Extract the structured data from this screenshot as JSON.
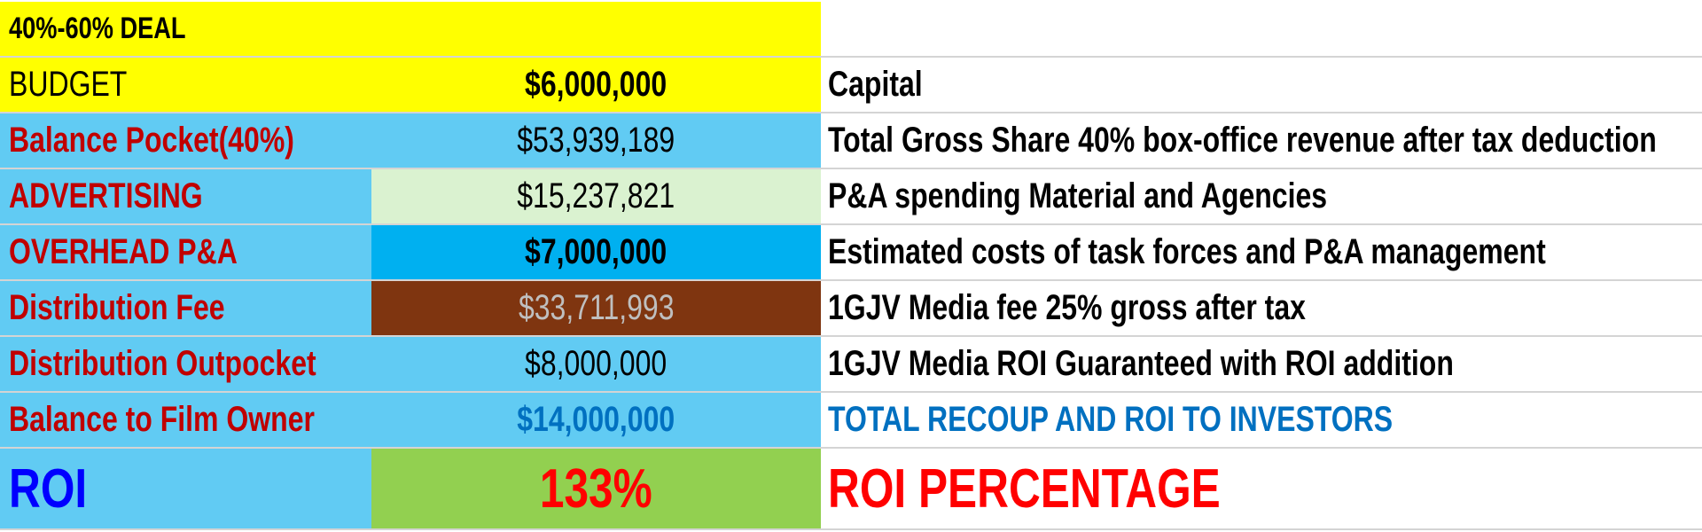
{
  "title": "40%-60% DEAL",
  "rows": [
    {
      "label": "BUDGET",
      "value": "$6,000,000",
      "note": "Capital"
    },
    {
      "label": "Balance Pocket(40%)",
      "value": "$53,939,189",
      "note": "Total Gross Share 40% box-office revenue after tax deduction"
    },
    {
      "label": "ADVERTISING",
      "value": "$15,237,821",
      "note": "P&A spending Material and Agencies"
    },
    {
      "label": "OVERHEAD P&A",
      "value": "$7,000,000",
      "note": "Estimated costs of task forces and P&A management"
    },
    {
      "label": "Distribution Fee",
      "value": "$33,711,993",
      "note": "1GJV Media fee 25% gross after tax"
    },
    {
      "label": "Distribution Outpocket",
      "value": "$8,000,000",
      "note": "1GJV Media ROI Guaranteed with ROI addition"
    },
    {
      "label": "Balance to Film Owner",
      "value": "$14,000,000",
      "note": "TOTAL RECOUP AND ROI TO INVESTORS"
    }
  ],
  "roi": {
    "label": "ROI",
    "value": "133%",
    "note": "ROI PERCENTAGE"
  },
  "colors": {
    "yellow": "#FFFF00",
    "light_blue": "#61CBF3",
    "light_green": "#DAF2D0",
    "cyan": "#00B0F0",
    "brown": "#7F3510",
    "green": "#92D050",
    "label_red": "#C00000",
    "blue_text": "#0070C0"
  }
}
